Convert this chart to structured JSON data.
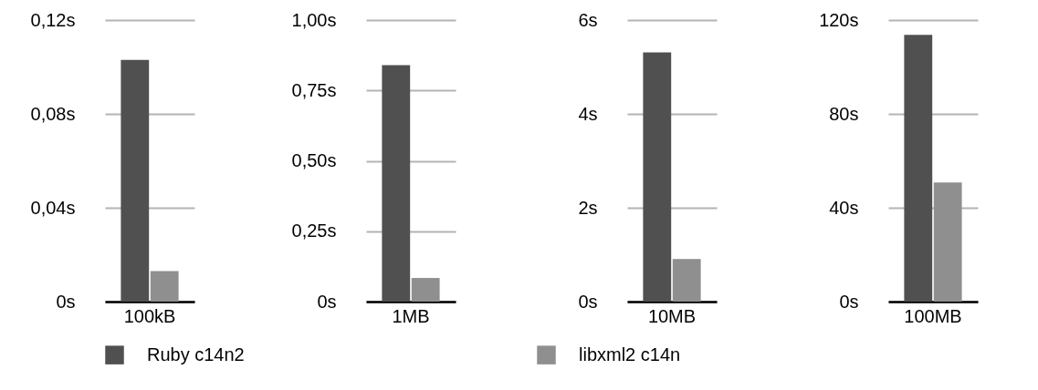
{
  "chart_data": [
    {
      "type": "bar",
      "categories": [
        "100kB"
      ],
      "series": [
        {
          "name": "Ruby c14n2",
          "color": "#505050",
          "values": [
            0.103
          ]
        },
        {
          "name": "libxml2 c14n",
          "color": "#8f8f8f",
          "values": [
            0.013
          ]
        }
      ],
      "ylim": [
        0,
        0.12
      ],
      "yticks": [
        {
          "value": 0,
          "label": "0s"
        },
        {
          "value": 0.04,
          "label": "0,04s"
        },
        {
          "value": 0.08,
          "label": "0,08s"
        },
        {
          "value": 0.12,
          "label": "0,12s"
        }
      ],
      "grid": "y",
      "legend": "bottom"
    },
    {
      "type": "bar",
      "categories": [
        "1MB"
      ],
      "series": [
        {
          "name": "Ruby c14n2",
          "color": "#505050",
          "values": [
            0.84
          ]
        },
        {
          "name": "libxml2 c14n",
          "color": "#8f8f8f",
          "values": [
            0.084
          ]
        }
      ],
      "ylim": [
        0,
        1
      ],
      "yticks": [
        {
          "value": 0,
          "label": "0s"
        },
        {
          "value": 0.25,
          "label": "0,25s"
        },
        {
          "value": 0.5,
          "label": "0,50s"
        },
        {
          "value": 0.75,
          "label": "0,75s"
        },
        {
          "value": 1,
          "label": "1,00s"
        }
      ],
      "grid": "y",
      "legend": "bottom"
    },
    {
      "type": "bar",
      "categories": [
        "10MB"
      ],
      "series": [
        {
          "name": "Ruby c14n2",
          "color": "#505050",
          "values": [
            5.31
          ]
        },
        {
          "name": "libxml2 c14n",
          "color": "#8f8f8f",
          "values": [
            0.91
          ]
        }
      ],
      "ylim": [
        0,
        6
      ],
      "yticks": [
        {
          "value": 0,
          "label": "0s"
        },
        {
          "value": 2,
          "label": "2s"
        },
        {
          "value": 4,
          "label": "4s"
        },
        {
          "value": 6,
          "label": "6s"
        }
      ],
      "grid": "y",
      "legend": "bottom"
    },
    {
      "type": "bar",
      "categories": [
        "100MB"
      ],
      "series": [
        {
          "name": "Ruby c14n2",
          "color": "#505050",
          "values": [
            113.7
          ]
        },
        {
          "name": "libxml2 c14n",
          "color": "#8f8f8f",
          "values": [
            50.8
          ]
        }
      ],
      "ylim": [
        0,
        120
      ],
      "yticks": [
        {
          "value": 0,
          "label": "0s"
        },
        {
          "value": 40,
          "label": "40s"
        },
        {
          "value": 80,
          "label": "80s"
        },
        {
          "value": 120,
          "label": "120s"
        }
      ],
      "grid": "y",
      "legend": "bottom"
    }
  ]
}
